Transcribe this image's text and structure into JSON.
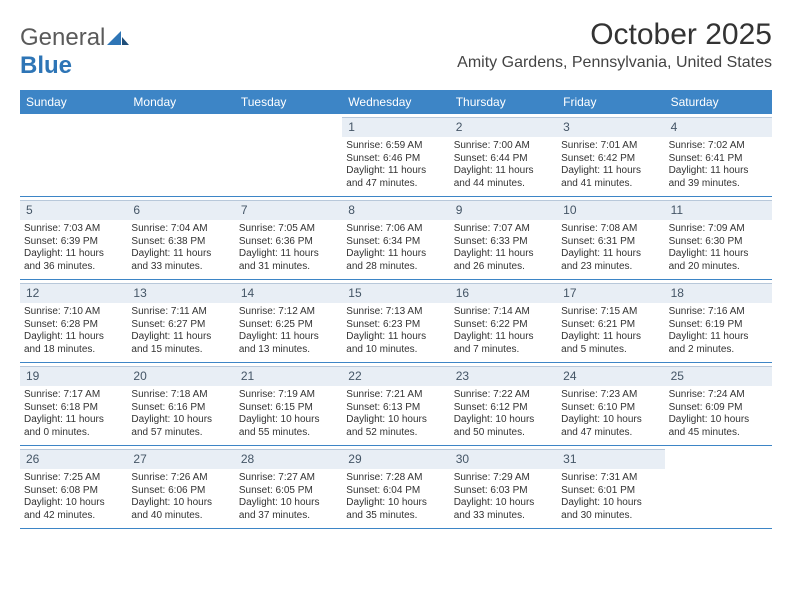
{
  "logo": {
    "part1": "General",
    "part2": "Blue"
  },
  "title": "October 2025",
  "location": "Amity Gardens, Pennsylvania, United States",
  "colors": {
    "header_bg": "#3d85c6",
    "header_text": "#ffffff",
    "daynum_bg": "#e8eef5",
    "daynum_border": "#b8c8da",
    "week_border": "#3d85c6",
    "logo_blue": "#2e75b6",
    "text": "#333333"
  },
  "dayNames": [
    "Sunday",
    "Monday",
    "Tuesday",
    "Wednesday",
    "Thursday",
    "Friday",
    "Saturday"
  ],
  "weeks": [
    [
      {
        "empty": true
      },
      {
        "empty": true
      },
      {
        "empty": true
      },
      {
        "day": "1",
        "sunrise": "Sunrise: 6:59 AM",
        "sunset": "Sunset: 6:46 PM",
        "daylight1": "Daylight: 11 hours",
        "daylight2": "and 47 minutes."
      },
      {
        "day": "2",
        "sunrise": "Sunrise: 7:00 AM",
        "sunset": "Sunset: 6:44 PM",
        "daylight1": "Daylight: 11 hours",
        "daylight2": "and 44 minutes."
      },
      {
        "day": "3",
        "sunrise": "Sunrise: 7:01 AM",
        "sunset": "Sunset: 6:42 PM",
        "daylight1": "Daylight: 11 hours",
        "daylight2": "and 41 minutes."
      },
      {
        "day": "4",
        "sunrise": "Sunrise: 7:02 AM",
        "sunset": "Sunset: 6:41 PM",
        "daylight1": "Daylight: 11 hours",
        "daylight2": "and 39 minutes."
      }
    ],
    [
      {
        "day": "5",
        "sunrise": "Sunrise: 7:03 AM",
        "sunset": "Sunset: 6:39 PM",
        "daylight1": "Daylight: 11 hours",
        "daylight2": "and 36 minutes."
      },
      {
        "day": "6",
        "sunrise": "Sunrise: 7:04 AM",
        "sunset": "Sunset: 6:38 PM",
        "daylight1": "Daylight: 11 hours",
        "daylight2": "and 33 minutes."
      },
      {
        "day": "7",
        "sunrise": "Sunrise: 7:05 AM",
        "sunset": "Sunset: 6:36 PM",
        "daylight1": "Daylight: 11 hours",
        "daylight2": "and 31 minutes."
      },
      {
        "day": "8",
        "sunrise": "Sunrise: 7:06 AM",
        "sunset": "Sunset: 6:34 PM",
        "daylight1": "Daylight: 11 hours",
        "daylight2": "and 28 minutes."
      },
      {
        "day": "9",
        "sunrise": "Sunrise: 7:07 AM",
        "sunset": "Sunset: 6:33 PM",
        "daylight1": "Daylight: 11 hours",
        "daylight2": "and 26 minutes."
      },
      {
        "day": "10",
        "sunrise": "Sunrise: 7:08 AM",
        "sunset": "Sunset: 6:31 PM",
        "daylight1": "Daylight: 11 hours",
        "daylight2": "and 23 minutes."
      },
      {
        "day": "11",
        "sunrise": "Sunrise: 7:09 AM",
        "sunset": "Sunset: 6:30 PM",
        "daylight1": "Daylight: 11 hours",
        "daylight2": "and 20 minutes."
      }
    ],
    [
      {
        "day": "12",
        "sunrise": "Sunrise: 7:10 AM",
        "sunset": "Sunset: 6:28 PM",
        "daylight1": "Daylight: 11 hours",
        "daylight2": "and 18 minutes."
      },
      {
        "day": "13",
        "sunrise": "Sunrise: 7:11 AM",
        "sunset": "Sunset: 6:27 PM",
        "daylight1": "Daylight: 11 hours",
        "daylight2": "and 15 minutes."
      },
      {
        "day": "14",
        "sunrise": "Sunrise: 7:12 AM",
        "sunset": "Sunset: 6:25 PM",
        "daylight1": "Daylight: 11 hours",
        "daylight2": "and 13 minutes."
      },
      {
        "day": "15",
        "sunrise": "Sunrise: 7:13 AM",
        "sunset": "Sunset: 6:23 PM",
        "daylight1": "Daylight: 11 hours",
        "daylight2": "and 10 minutes."
      },
      {
        "day": "16",
        "sunrise": "Sunrise: 7:14 AM",
        "sunset": "Sunset: 6:22 PM",
        "daylight1": "Daylight: 11 hours",
        "daylight2": "and 7 minutes."
      },
      {
        "day": "17",
        "sunrise": "Sunrise: 7:15 AM",
        "sunset": "Sunset: 6:21 PM",
        "daylight1": "Daylight: 11 hours",
        "daylight2": "and 5 minutes."
      },
      {
        "day": "18",
        "sunrise": "Sunrise: 7:16 AM",
        "sunset": "Sunset: 6:19 PM",
        "daylight1": "Daylight: 11 hours",
        "daylight2": "and 2 minutes."
      }
    ],
    [
      {
        "day": "19",
        "sunrise": "Sunrise: 7:17 AM",
        "sunset": "Sunset: 6:18 PM",
        "daylight1": "Daylight: 11 hours",
        "daylight2": "and 0 minutes."
      },
      {
        "day": "20",
        "sunrise": "Sunrise: 7:18 AM",
        "sunset": "Sunset: 6:16 PM",
        "daylight1": "Daylight: 10 hours",
        "daylight2": "and 57 minutes."
      },
      {
        "day": "21",
        "sunrise": "Sunrise: 7:19 AM",
        "sunset": "Sunset: 6:15 PM",
        "daylight1": "Daylight: 10 hours",
        "daylight2": "and 55 minutes."
      },
      {
        "day": "22",
        "sunrise": "Sunrise: 7:21 AM",
        "sunset": "Sunset: 6:13 PM",
        "daylight1": "Daylight: 10 hours",
        "daylight2": "and 52 minutes."
      },
      {
        "day": "23",
        "sunrise": "Sunrise: 7:22 AM",
        "sunset": "Sunset: 6:12 PM",
        "daylight1": "Daylight: 10 hours",
        "daylight2": "and 50 minutes."
      },
      {
        "day": "24",
        "sunrise": "Sunrise: 7:23 AM",
        "sunset": "Sunset: 6:10 PM",
        "daylight1": "Daylight: 10 hours",
        "daylight2": "and 47 minutes."
      },
      {
        "day": "25",
        "sunrise": "Sunrise: 7:24 AM",
        "sunset": "Sunset: 6:09 PM",
        "daylight1": "Daylight: 10 hours",
        "daylight2": "and 45 minutes."
      }
    ],
    [
      {
        "day": "26",
        "sunrise": "Sunrise: 7:25 AM",
        "sunset": "Sunset: 6:08 PM",
        "daylight1": "Daylight: 10 hours",
        "daylight2": "and 42 minutes."
      },
      {
        "day": "27",
        "sunrise": "Sunrise: 7:26 AM",
        "sunset": "Sunset: 6:06 PM",
        "daylight1": "Daylight: 10 hours",
        "daylight2": "and 40 minutes."
      },
      {
        "day": "28",
        "sunrise": "Sunrise: 7:27 AM",
        "sunset": "Sunset: 6:05 PM",
        "daylight1": "Daylight: 10 hours",
        "daylight2": "and 37 minutes."
      },
      {
        "day": "29",
        "sunrise": "Sunrise: 7:28 AM",
        "sunset": "Sunset: 6:04 PM",
        "daylight1": "Daylight: 10 hours",
        "daylight2": "and 35 minutes."
      },
      {
        "day": "30",
        "sunrise": "Sunrise: 7:29 AM",
        "sunset": "Sunset: 6:03 PM",
        "daylight1": "Daylight: 10 hours",
        "daylight2": "and 33 minutes."
      },
      {
        "day": "31",
        "sunrise": "Sunrise: 7:31 AM",
        "sunset": "Sunset: 6:01 PM",
        "daylight1": "Daylight: 10 hours",
        "daylight2": "and 30 minutes."
      },
      {
        "empty": true
      }
    ]
  ]
}
